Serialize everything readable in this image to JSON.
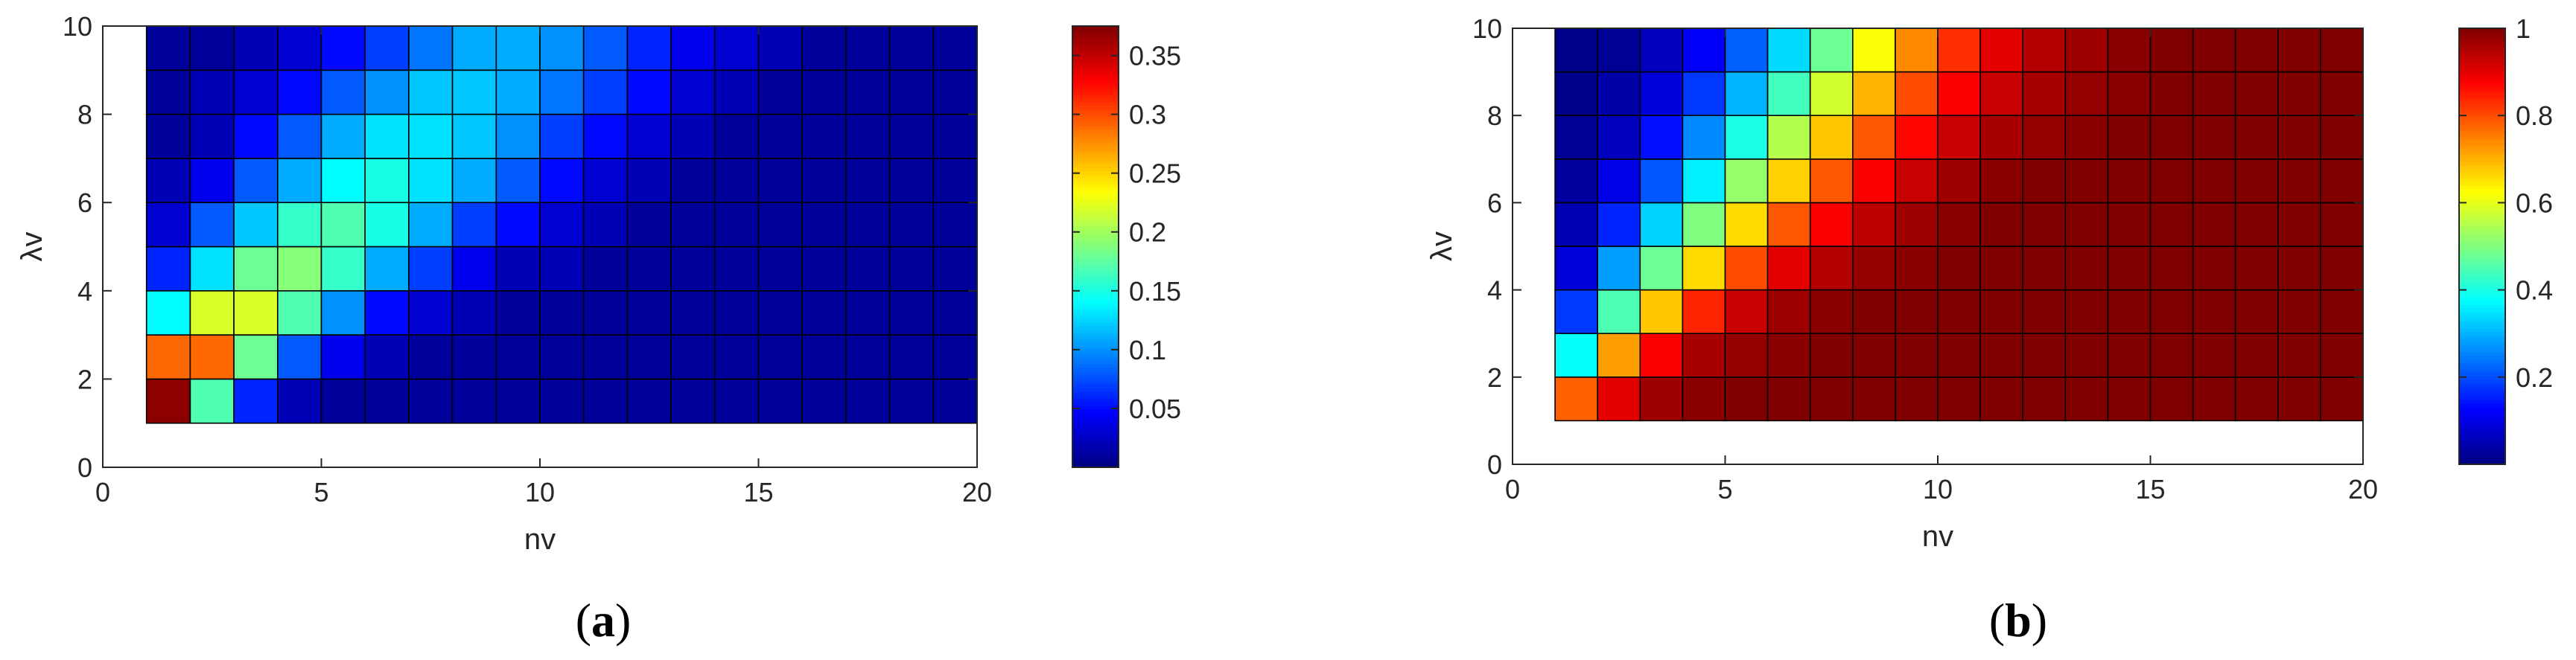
{
  "chart_data": [
    {
      "type": "heatmap",
      "caption": "(a)",
      "caption_letter": "a",
      "xlabel": "nv",
      "ylabel": "λv",
      "xlim": [
        0,
        20
      ],
      "ylim": [
        0,
        10
      ],
      "xticks": [
        0,
        5,
        10,
        15,
        20
      ],
      "yticks": [
        0,
        2,
        4,
        6,
        8,
        10
      ],
      "x_edges": [
        1,
        20
      ],
      "y_edges": [
        1,
        10
      ],
      "colorbar": {
        "min": 0.0,
        "max": 0.375,
        "ticks": [
          0.05,
          0.1,
          0.15,
          0.2,
          0.25,
          0.3,
          0.35
        ],
        "tick_labels": [
          "0.05",
          "0.1",
          "0.15",
          "0.2",
          "0.25",
          "0.3",
          "0.35"
        ]
      },
      "grid_note": "rows bottom to top, columns left to right",
      "values": [
        [
          0.37,
          0.17,
          0.06,
          0.02,
          0.01,
          0.01,
          0.01,
          0.01,
          0.01,
          0.01,
          0.01,
          0.01,
          0.01,
          0.01,
          0.01,
          0.01,
          0.01,
          0.01,
          0.01
        ],
        [
          0.29,
          0.29,
          0.18,
          0.08,
          0.04,
          0.02,
          0.01,
          0.01,
          0.01,
          0.01,
          0.01,
          0.01,
          0.01,
          0.01,
          0.01,
          0.01,
          0.01,
          0.01,
          0.01
        ],
        [
          0.14,
          0.22,
          0.22,
          0.17,
          0.1,
          0.05,
          0.03,
          0.02,
          0.01,
          0.01,
          0.01,
          0.01,
          0.01,
          0.01,
          0.01,
          0.01,
          0.01,
          0.01,
          0.01
        ],
        [
          0.06,
          0.13,
          0.18,
          0.19,
          0.16,
          0.11,
          0.07,
          0.04,
          0.02,
          0.02,
          0.01,
          0.01,
          0.01,
          0.01,
          0.01,
          0.01,
          0.01,
          0.01,
          0.01
        ],
        [
          0.03,
          0.08,
          0.12,
          0.16,
          0.17,
          0.15,
          0.11,
          0.07,
          0.05,
          0.03,
          0.02,
          0.01,
          0.01,
          0.01,
          0.01,
          0.01,
          0.01,
          0.01,
          0.01
        ],
        [
          0.02,
          0.04,
          0.08,
          0.11,
          0.14,
          0.15,
          0.13,
          0.11,
          0.08,
          0.05,
          0.03,
          0.02,
          0.01,
          0.01,
          0.01,
          0.01,
          0.01,
          0.01,
          0.01
        ],
        [
          0.01,
          0.02,
          0.05,
          0.08,
          0.11,
          0.13,
          0.13,
          0.12,
          0.1,
          0.07,
          0.05,
          0.03,
          0.02,
          0.01,
          0.01,
          0.01,
          0.01,
          0.01,
          0.01
        ],
        [
          0.01,
          0.02,
          0.03,
          0.05,
          0.08,
          0.1,
          0.12,
          0.12,
          0.11,
          0.09,
          0.07,
          0.05,
          0.03,
          0.02,
          0.01,
          0.01,
          0.01,
          0.01,
          0.01
        ],
        [
          0.01,
          0.01,
          0.02,
          0.03,
          0.05,
          0.07,
          0.09,
          0.11,
          0.11,
          0.1,
          0.08,
          0.06,
          0.04,
          0.03,
          0.02,
          0.01,
          0.01,
          0.01,
          0.01
        ]
      ]
    },
    {
      "type": "heatmap",
      "caption": "(b)",
      "caption_letter": "b",
      "xlabel": "nv",
      "ylabel": "λv",
      "xlim": [
        0,
        20
      ],
      "ylim": [
        0,
        10
      ],
      "xticks": [
        0,
        5,
        10,
        15,
        20
      ],
      "yticks": [
        0,
        2,
        4,
        6,
        8,
        10
      ],
      "x_edges": [
        1,
        20
      ],
      "y_edges": [
        1,
        10
      ],
      "colorbar": {
        "min": 0.0,
        "max": 1.0,
        "ticks": [
          0.2,
          0.4,
          0.6,
          0.8,
          1.0
        ],
        "tick_labels": [
          "0.2",
          "0.4",
          "0.6",
          "0.8",
          "1"
        ]
      },
      "grid_note": "rows bottom to top, columns left to right",
      "values": [
        [
          0.78,
          0.9,
          0.97,
          0.99,
          1.0,
          1.0,
          1.0,
          1.0,
          1.0,
          1.0,
          1.0,
          1.0,
          1.0,
          1.0,
          1.0,
          1.0,
          1.0,
          1.0,
          1.0
        ],
        [
          0.38,
          0.72,
          0.88,
          0.96,
          0.98,
          0.99,
          1.0,
          1.0,
          1.0,
          1.0,
          1.0,
          1.0,
          1.0,
          1.0,
          1.0,
          1.0,
          1.0,
          1.0,
          1.0
        ],
        [
          0.18,
          0.45,
          0.68,
          0.84,
          0.93,
          0.97,
          0.99,
          1.0,
          1.0,
          1.0,
          1.0,
          1.0,
          1.0,
          1.0,
          1.0,
          1.0,
          1.0,
          1.0,
          1.0
        ],
        [
          0.09,
          0.28,
          0.48,
          0.66,
          0.8,
          0.9,
          0.95,
          0.98,
          0.99,
          1.0,
          1.0,
          1.0,
          1.0,
          1.0,
          1.0,
          1.0,
          1.0,
          1.0,
          1.0
        ],
        [
          0.05,
          0.16,
          0.33,
          0.5,
          0.66,
          0.79,
          0.88,
          0.94,
          0.97,
          0.99,
          1.0,
          1.0,
          1.0,
          1.0,
          1.0,
          1.0,
          1.0,
          1.0,
          1.0
        ],
        [
          0.03,
          0.1,
          0.21,
          0.36,
          0.52,
          0.67,
          0.79,
          0.88,
          0.93,
          0.97,
          0.99,
          1.0,
          1.0,
          1.0,
          1.0,
          1.0,
          1.0,
          1.0,
          1.0
        ],
        [
          0.02,
          0.06,
          0.14,
          0.26,
          0.4,
          0.55,
          0.68,
          0.79,
          0.87,
          0.93,
          0.96,
          0.98,
          0.99,
          1.0,
          1.0,
          1.0,
          1.0,
          1.0,
          1.0
        ],
        [
          0.01,
          0.04,
          0.09,
          0.18,
          0.3,
          0.44,
          0.58,
          0.7,
          0.8,
          0.88,
          0.93,
          0.96,
          0.98,
          0.99,
          1.0,
          1.0,
          1.0,
          1.0,
          1.0
        ],
        [
          0.01,
          0.02,
          0.06,
          0.12,
          0.22,
          0.34,
          0.48,
          0.62,
          0.74,
          0.83,
          0.9,
          0.95,
          0.97,
          0.99,
          1.0,
          1.0,
          1.0,
          1.0,
          1.0
        ]
      ]
    }
  ]
}
